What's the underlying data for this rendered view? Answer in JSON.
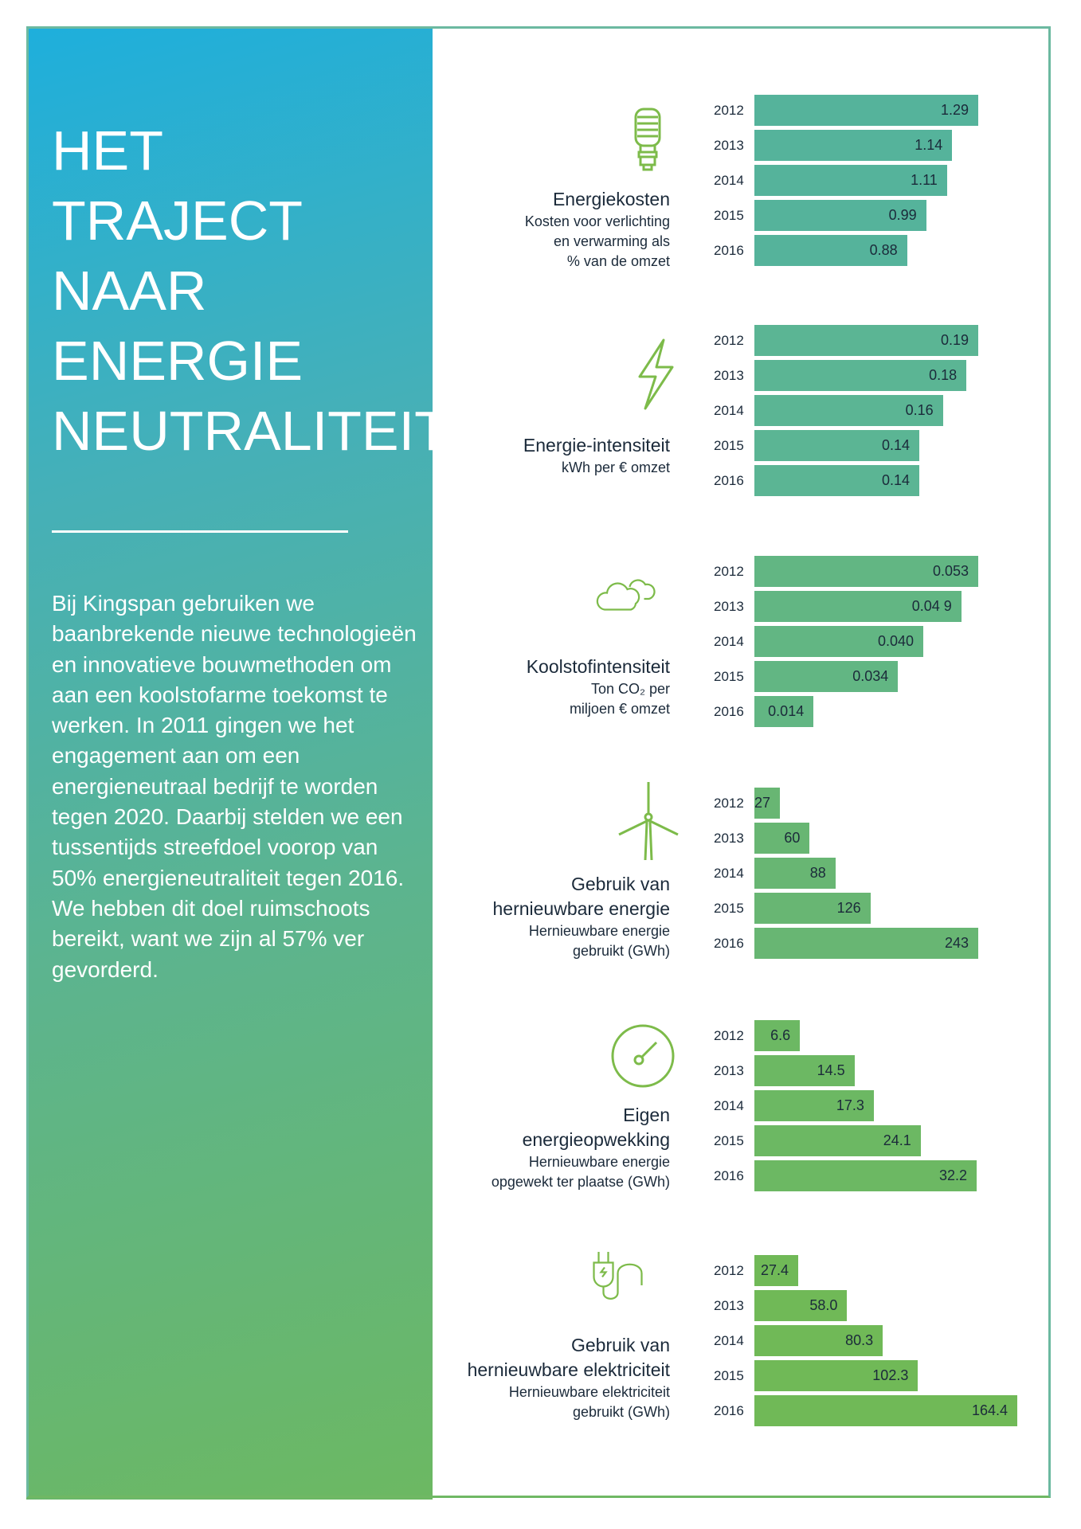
{
  "left_panel": {
    "title_lines": [
      "HET",
      "TRAJECT",
      "NAAR",
      "ENERGIE",
      "NEUTRALITEIT"
    ],
    "paragraph": "Bij Kingspan gebruiken we baanbrekende nieuwe technologieën en innovatieve bouwmethoden om aan een koolstofarme toekomst te werken. In 2011 gingen we het engagement aan om een energieneutraal bedrijf te worden tegen 2020. Daarbij stelden we een tussentijds streefdoel voorop van 50% energieneutraliteit tegen 2016. We hebben dit doel ruimschoots bereikt, want we zijn al 57% ver gevorderd."
  },
  "chart_data": [
    {
      "type": "bar",
      "icon": "lightbulb-icon",
      "title_lines": [
        "Energiekosten"
      ],
      "subtitle_lines": [
        "Kosten voor verlichting",
        "en verwarming als",
        "% van de omzet"
      ],
      "categories": [
        "2012",
        "2013",
        "2014",
        "2015",
        "2016"
      ],
      "values": [
        1.29,
        1.14,
        1.11,
        0.99,
        0.88
      ],
      "labels": [
        "1.29",
        "1.14",
        "1.11",
        "0.99",
        "0.88"
      ],
      "color": "#55b39b"
    },
    {
      "type": "bar",
      "icon": "lightning-icon",
      "title_lines": [
        "Energie-intensiteit"
      ],
      "subtitle_lines": [
        "kWh per € omzet"
      ],
      "categories": [
        "2012",
        "2013",
        "2014",
        "2015",
        "2016"
      ],
      "values": [
        0.19,
        0.18,
        0.16,
        0.14,
        0.14
      ],
      "labels": [
        "0.19",
        "0.18",
        "0.16",
        "0.14",
        "0.14"
      ],
      "color": "#5bb594"
    },
    {
      "type": "bar",
      "icon": "cloud-icon",
      "title_lines": [
        "Koolstofintensiteit"
      ],
      "subtitle_lines": [
        "Ton CO₂ per",
        "miljoen € omzet"
      ],
      "categories": [
        "2012",
        "2013",
        "2014",
        "2015",
        "2016"
      ],
      "values": [
        0.053,
        0.049,
        0.04,
        0.034,
        0.014
      ],
      "labels": [
        "0.053",
        "0.04 9",
        "0.040",
        "0.034",
        "0.014"
      ],
      "color": "#62b683"
    },
    {
      "type": "bar",
      "icon": "wind-turbine-icon",
      "title_lines": [
        "Gebruik van",
        "hernieuwbare energie"
      ],
      "subtitle_lines": [
        "Hernieuwbare energie",
        "gebruikt (GWh)"
      ],
      "categories": [
        "2012",
        "2013",
        "2014",
        "2015",
        "2016"
      ],
      "values": [
        27,
        60,
        88,
        126,
        243
      ],
      "labels": [
        "27",
        "60",
        "88",
        "126",
        "243"
      ],
      "color": "#68b673"
    },
    {
      "type": "bar",
      "icon": "gauge-icon",
      "title_lines": [
        "Eigen",
        "energieopwekking"
      ],
      "subtitle_lines": [
        "Hernieuwbare energie",
        "opgewekt ter plaatse (GWh)"
      ],
      "categories": [
        "2012",
        "2013",
        "2014",
        "2015",
        "2016"
      ],
      "values": [
        6.6,
        14.5,
        17.3,
        24.1,
        32.2
      ],
      "labels": [
        "6.6",
        "14.5",
        "17.3",
        "24.1",
        "32.2"
      ],
      "color": "#6cb863"
    },
    {
      "type": "bar",
      "icon": "plug-icon",
      "title_lines": [
        "Gebruik van",
        "hernieuwbare elektriciteit"
      ],
      "subtitle_lines": [
        "Hernieuwbare elektriciteit",
        "gebruikt (GWh)"
      ],
      "categories": [
        "2012",
        "2013",
        "2014",
        "2015",
        "2016"
      ],
      "values": [
        27.4,
        58.0,
        80.3,
        102.3,
        164.4
      ],
      "labels": [
        "27.4",
        "58.0",
        "80.3",
        "102.3",
        "164.4"
      ],
      "color": "#70b957"
    }
  ],
  "icon_color": "#7dbb4a"
}
